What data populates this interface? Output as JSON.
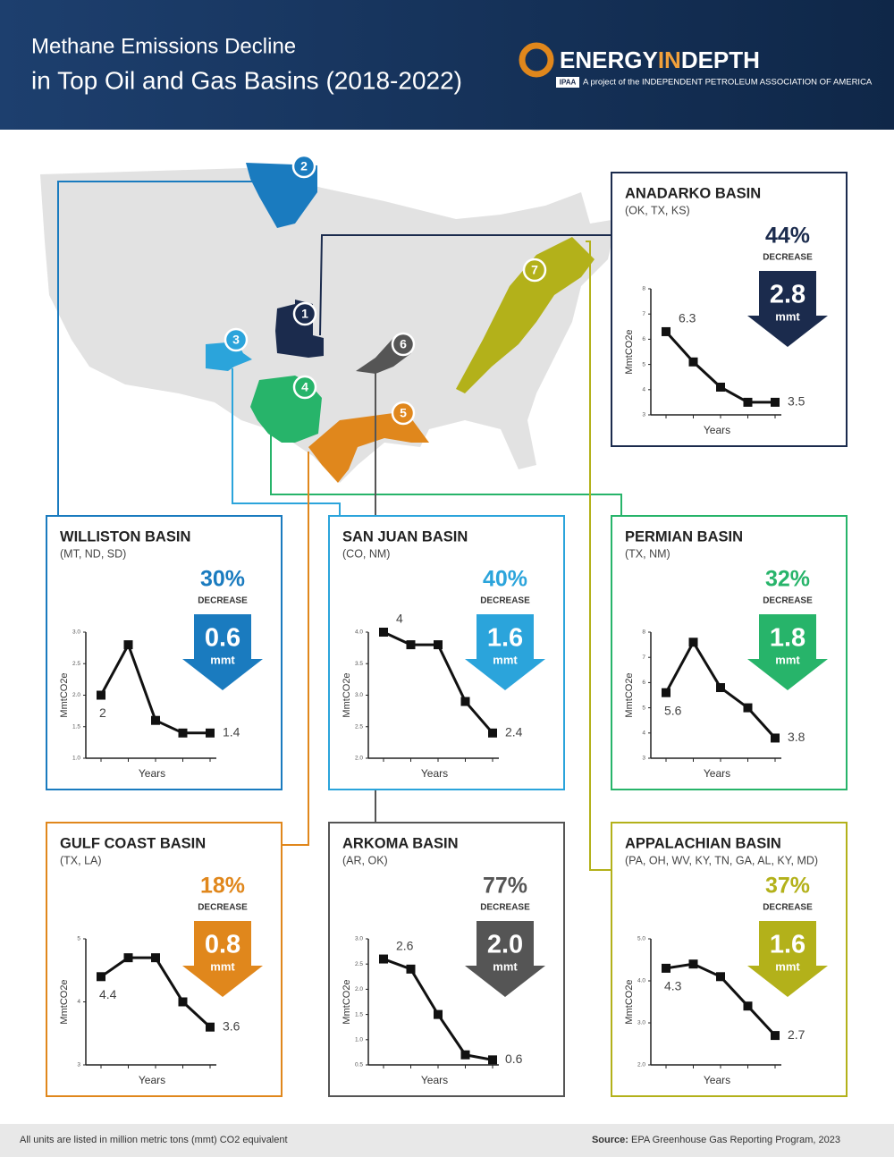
{
  "header": {
    "title": [
      "Methane Emissions Decline",
      "in Top Oil and Gas Basins (2018-2022)"
    ],
    "logo": [
      "ENERGY",
      "IN",
      "DEPTH"
    ],
    "logo_badge": "IPAA",
    "tagline": "A project of the INDEPENDENT PETROLEUM ASSOCIATION OF AMERICA"
  },
  "map": {
    "markers": [
      "1",
      "2",
      "3",
      "4",
      "5",
      "6",
      "7"
    ]
  },
  "chart_data": [
    {
      "type": "line",
      "title": "ANADARKO BASIN",
      "subtitle": "(OK, TX, KS)",
      "decrease": "44%",
      "decrease_label": "DECREASE",
      "reduction": "2.8",
      "reduction_unit": "mmt",
      "y_label": "MmtCO2e",
      "x_label": "Years",
      "color": "#1b2b4d",
      "values": [
        6.3,
        5.1,
        4.1,
        3.5,
        3.5
      ],
      "value_labels": [
        "6.3",
        null,
        null,
        null,
        "3.5"
      ],
      "ylim": [
        3,
        8
      ],
      "yticks": [
        3,
        4,
        5,
        6,
        7,
        8
      ]
    },
    {
      "type": "line",
      "title": "WILLISTON BASIN",
      "subtitle": "(MT, ND, SD)",
      "decrease": "30%",
      "decrease_label": "DECREASE",
      "reduction": "0.6",
      "reduction_unit": "mmt",
      "y_label": "MmtCO2e",
      "x_label": "Years",
      "color": "#1a7bbf",
      "values": [
        2,
        2.8,
        1.6,
        1.4,
        1.4
      ],
      "value_labels": [
        "2",
        null,
        null,
        null,
        "1.4"
      ],
      "ylim": [
        1,
        3
      ],
      "yticks": [
        {
          "value": 1,
          "label": "1.0"
        },
        1.5,
        {
          "value": 2,
          "label": "2.0"
        },
        2.5,
        {
          "value": 3,
          "label": "3.0"
        }
      ]
    },
    {
      "type": "line",
      "title": "SAN JUAN BASIN",
      "subtitle": "(CO, NM)",
      "decrease": "40%",
      "decrease_label": "DECREASE",
      "reduction": "1.6",
      "reduction_unit": "mmt",
      "y_label": "MmtCO2e",
      "x_label": "Years",
      "color": "#2ba4db",
      "values": [
        4,
        3.8,
        3.8,
        2.9,
        2.4
      ],
      "value_labels": [
        "4",
        null,
        null,
        null,
        "2.4"
      ],
      "ylim": [
        2,
        4
      ],
      "yticks": [
        {
          "value": 2,
          "label": "2.0"
        },
        2.5,
        {
          "value": 3,
          "label": "3.0"
        },
        3.5,
        {
          "value": 4,
          "label": "4.0"
        }
      ]
    },
    {
      "type": "line",
      "title": "PERMIAN BASIN",
      "subtitle": "(TX, NM)",
      "decrease": "32%",
      "decrease_label": "DECREASE",
      "reduction": "1.8",
      "reduction_unit": "mmt",
      "y_label": "MmtCO2e",
      "x_label": "Years",
      "color": "#27b46a",
      "values": [
        5.6,
        7.6,
        5.8,
        5,
        3.8
      ],
      "value_labels": [
        "5.6",
        null,
        null,
        null,
        "3.8"
      ],
      "ylim": [
        3,
        8
      ],
      "yticks": [
        3,
        4,
        5,
        6,
        7,
        8
      ]
    },
    {
      "type": "line",
      "title": "GULF COAST BASIN",
      "subtitle": "(TX, LA)",
      "decrease": "18%",
      "decrease_label": "DECREASE",
      "reduction": "0.8",
      "reduction_unit": "mmt",
      "y_label": "MmtCO2e",
      "x_label": "Years",
      "color": "#e0871c",
      "values": [
        4.4,
        4.7,
        4.7,
        4,
        3.6
      ],
      "value_labels": [
        "4.4",
        null,
        null,
        null,
        "3.6"
      ],
      "ylim": [
        3,
        5
      ],
      "yticks": [
        3,
        4,
        5
      ]
    },
    {
      "type": "line",
      "title": "ARKOMA BASIN",
      "subtitle": "(AR, OK)",
      "decrease": "77%",
      "decrease_label": "DECREASE",
      "reduction": "2.0",
      "reduction_unit": "mmt",
      "y_label": "MmtCO2e",
      "x_label": "Years",
      "color": "#555555",
      "values": [
        2.6,
        2.4,
        1.5,
        0.7,
        0.6
      ],
      "value_labels": [
        "2.6",
        null,
        null,
        null,
        "0.6"
      ],
      "ylim": [
        0.5,
        3
      ],
      "yticks": [
        0.5,
        {
          "value": 1,
          "label": "1.0"
        },
        1.5,
        {
          "value": 2,
          "label": "2.0"
        },
        2.5,
        {
          "value": 3,
          "label": "3.0"
        }
      ]
    },
    {
      "type": "line",
      "title": "APPALACHIAN BASIN",
      "subtitle": "(PA, OH, WV, KY, TN, GA, AL, KY, MD)",
      "decrease": "37%",
      "decrease_label": "DECREASE",
      "reduction": "1.6",
      "reduction_unit": "mmt",
      "y_label": "MmtCO2e",
      "x_label": "Years",
      "color": "#b3b11a",
      "values": [
        4.3,
        4.4,
        4.1,
        3.4,
        2.7
      ],
      "value_labels": [
        "4.3",
        null,
        null,
        null,
        "2.7"
      ],
      "ylim": [
        2,
        5
      ],
      "yticks": [
        {
          "value": 2,
          "label": "2.0"
        },
        {
          "value": 3,
          "label": "3.0"
        },
        {
          "value": 4,
          "label": "4.0"
        },
        {
          "value": 5,
          "label": "5.0"
        }
      ]
    }
  ],
  "footer": {
    "note": "All units are listed in million metric tons (mmt) CO2 equivalent",
    "source_label": "Source:",
    "source": "EPA Greenhouse Gas Reporting Program, 2023"
  }
}
